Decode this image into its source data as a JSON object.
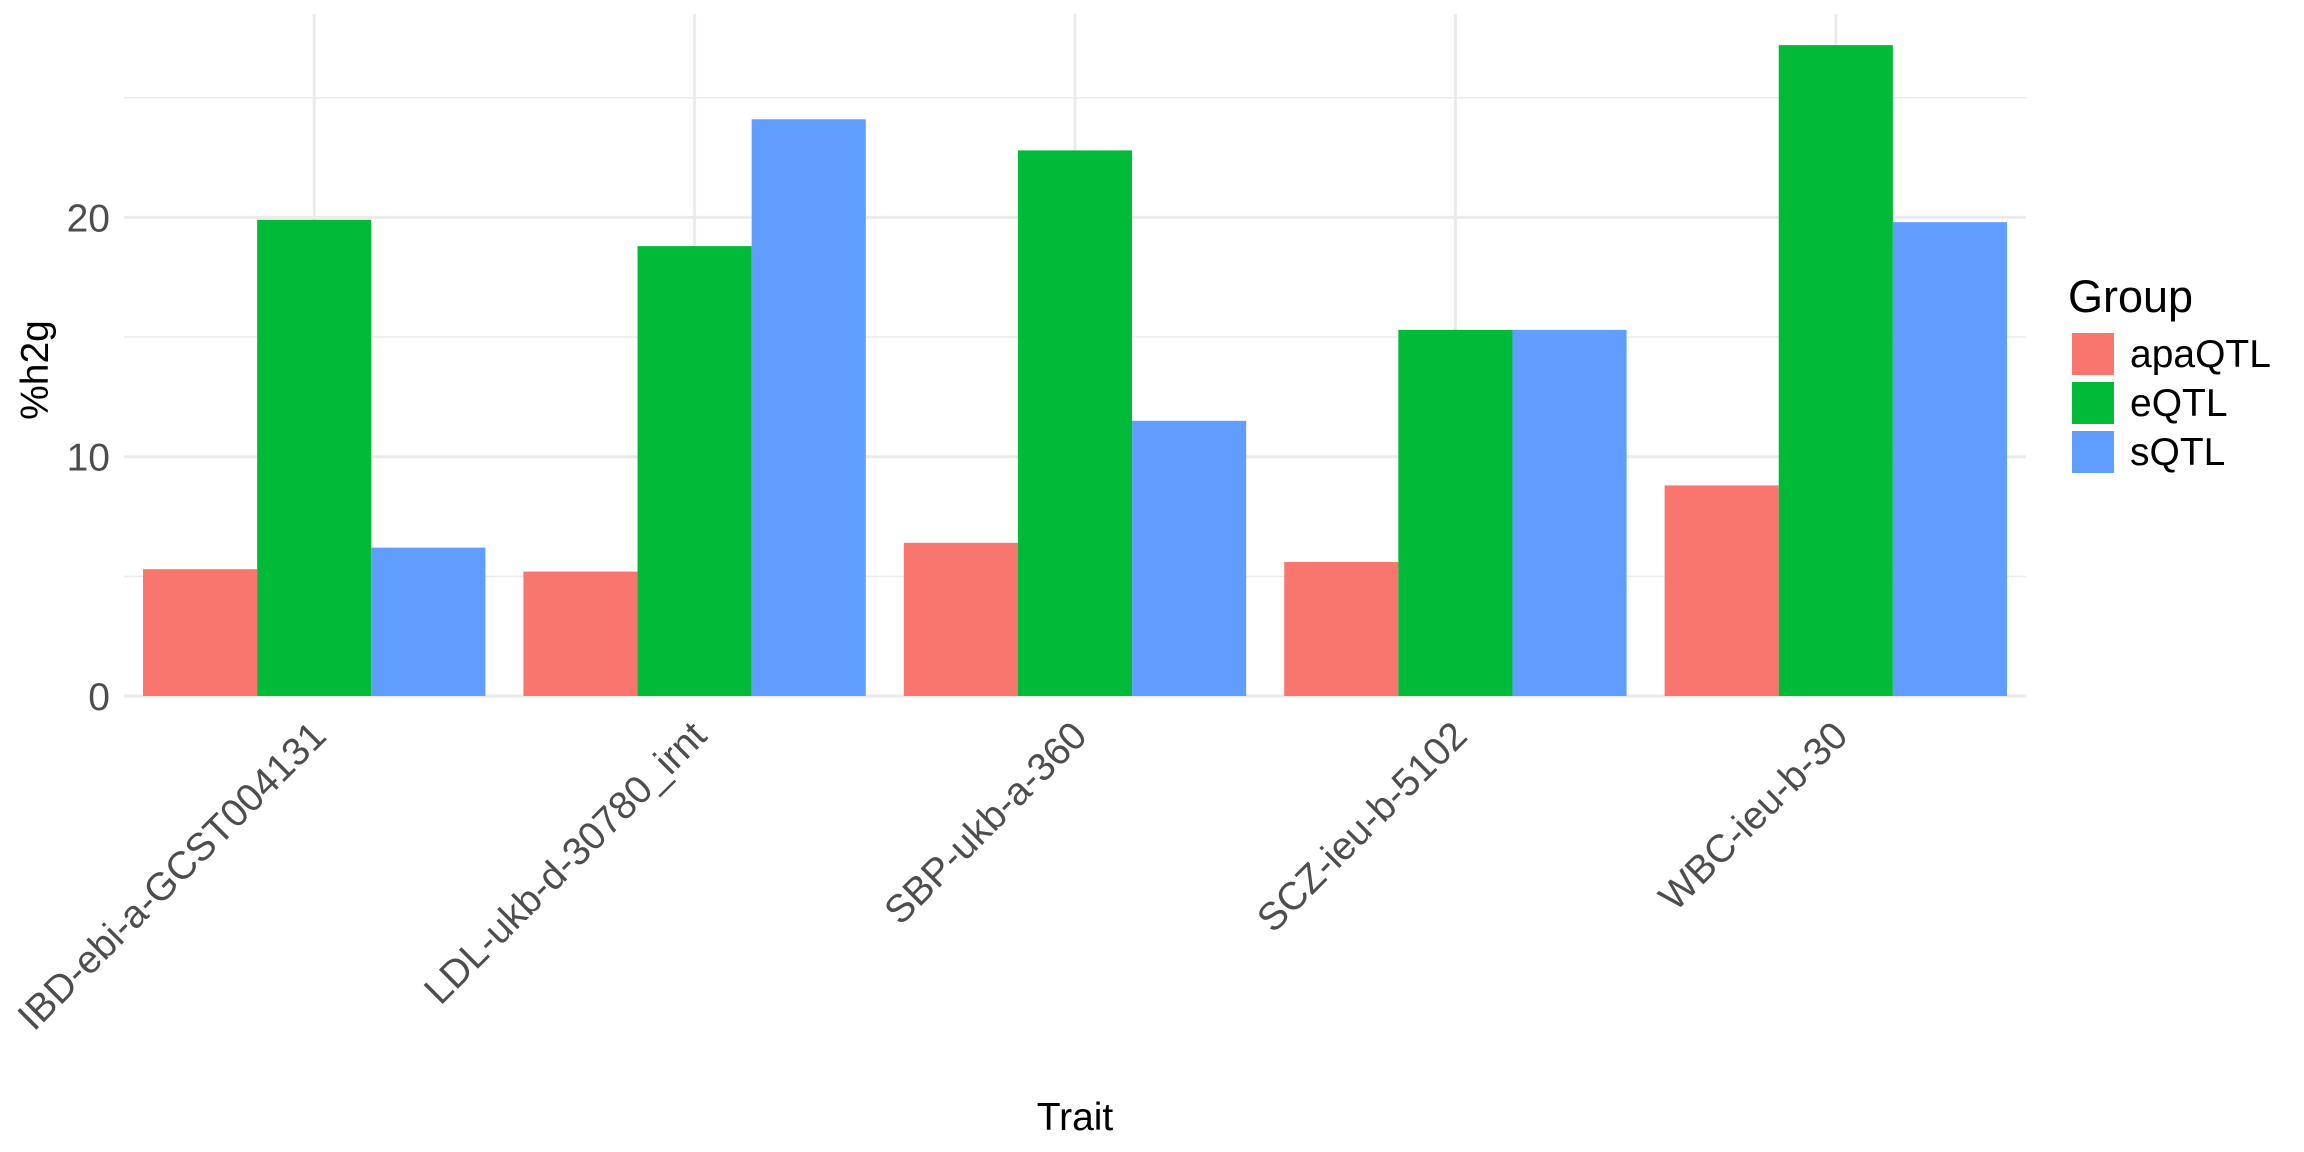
{
  "chart_data": {
    "type": "bar",
    "categories": [
      "IBD-ebi-a-GCST004131",
      "LDL-ukb-d-30780_irnt",
      "SBP-ukb-a-360",
      "SCZ-ieu-b-5102",
      "WBC-ieu-b-30"
    ],
    "series": [
      {
        "name": "apaQTL",
        "color": "#F8766D",
        "values": [
          5.3,
          5.2,
          6.4,
          5.6,
          8.8
        ]
      },
      {
        "name": "eQTL",
        "color": "#00BA38",
        "values": [
          19.9,
          18.8,
          22.8,
          15.3,
          27.2
        ]
      },
      {
        "name": "sQTL",
        "color": "#619CFF",
        "values": [
          6.2,
          24.1,
          11.5,
          15.3,
          19.8
        ]
      }
    ],
    "xlabel": "Trait",
    "ylabel": "%h2g",
    "ylim": [
      0,
      28.5
    ],
    "y_ticks": [
      0,
      10,
      20
    ],
    "grid": true,
    "legend": {
      "title": "Group",
      "position": "right"
    }
  }
}
